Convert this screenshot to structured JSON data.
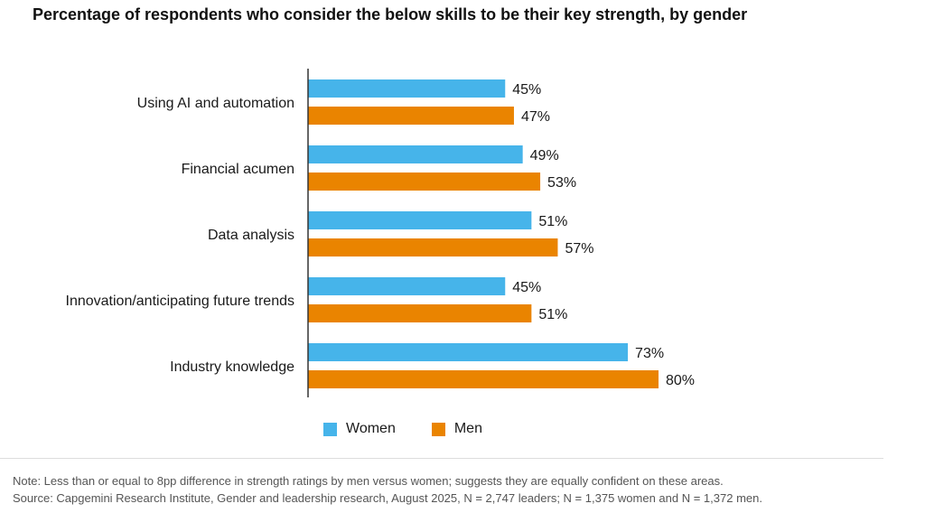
{
  "chart_data": {
    "type": "bar",
    "orientation": "horizontal",
    "title": "Percentage of respondents who consider the below skills to be their key strength, by gender",
    "categories": [
      "Using AI and automation",
      "Financial acumen",
      "Data analysis",
      "Innovation/anticipating future trends",
      "Industry knowledge"
    ],
    "series": [
      {
        "name": "Women",
        "color": "#46b4ea",
        "values": [
          45,
          49,
          51,
          45,
          73
        ],
        "labels": [
          "45%",
          "49%",
          "51%",
          "45%",
          "73%"
        ]
      },
      {
        "name": "Men",
        "color": "#ea8400",
        "values": [
          47,
          53,
          57,
          51,
          80
        ],
        "labels": [
          "47%",
          "53%",
          "57%",
          "51%",
          "80%"
        ]
      }
    ],
    "xlim": [
      0,
      100
    ],
    "xlabel": "",
    "ylabel": "",
    "grid": false,
    "legend_position": "bottom"
  },
  "footer": {
    "note": "Note: Less than or equal to 8pp difference in strength ratings by men versus women; suggests they are equally confident on these areas.",
    "source": "Source: Capgemini Research Institute, Gender and leadership research, August 2025, N = 2,747 leaders; N = 1,375 women and N = 1,372 men."
  }
}
